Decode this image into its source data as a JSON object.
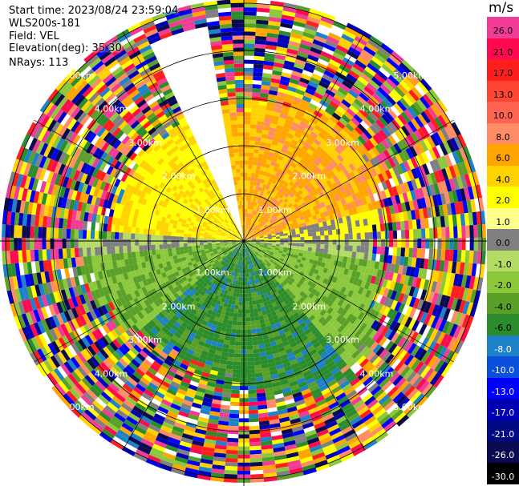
{
  "header": {
    "start_time": "Start time: 2023/08/24 23:59:04",
    "instrument": "WLS200s-181",
    "field": "Field: VEL",
    "elevation": "Elevation(deg): 35.30",
    "nrays": "NRays: 113"
  },
  "range_labels": [
    "1.00km",
    "2.00km",
    "3.00km",
    "4.00km",
    "5.00km"
  ],
  "colorbar": {
    "unit": "m/s",
    "entries": [
      {
        "label": "26.0",
        "color": "#f03c96"
      },
      {
        "label": "21.0",
        "color": "#ff0a50"
      },
      {
        "label": "17.0",
        "color": "#ff1e1e"
      },
      {
        "label": "13.0",
        "color": "#ff4632"
      },
      {
        "label": "10.0",
        "color": "#ff6450"
      },
      {
        "label": "8.0",
        "color": "#ff8c64"
      },
      {
        "label": "6.0",
        "color": "#ffa500"
      },
      {
        "label": "4.0",
        "color": "#ffd200"
      },
      {
        "label": "2.0",
        "color": "#ffff00"
      },
      {
        "label": "1.0",
        "color": "#ffff8c"
      },
      {
        "label": "0.0",
        "color": "#808080"
      },
      {
        "label": "-1.0",
        "color": "#b4dc64"
      },
      {
        "label": "-2.0",
        "color": "#8cc83c"
      },
      {
        "label": "-4.0",
        "color": "#5aa028"
      },
      {
        "label": "-6.0",
        "color": "#2a8c2a"
      },
      {
        "label": "-8.0",
        "color": "#1e82c8"
      },
      {
        "label": "-10.0",
        "color": "#0a50dc"
      },
      {
        "label": "-13.0",
        "color": "#0000ff"
      },
      {
        "label": "-17.0",
        "color": "#0000b4"
      },
      {
        "label": "-21.0",
        "color": "#000a82"
      },
      {
        "label": "-26.0",
        "color": "#0a0a50"
      },
      {
        "label": "-30.0",
        "color": "#000000"
      }
    ]
  },
  "palette": {
    "grid": "#000000",
    "range_label": "#ffffff",
    "noise_colors": [
      "#f03c96",
      "#ff0a50",
      "#ff1e1e",
      "#ffd200",
      "#ffff00",
      "#0000ff",
      "#0000b4",
      "#2a8c2a",
      "#808080",
      "#1e82c8",
      "#ffffff",
      "#ff8c64",
      "#5aa028",
      "#8cc83c",
      "#0a0a50",
      "#ffa500"
    ]
  }
}
